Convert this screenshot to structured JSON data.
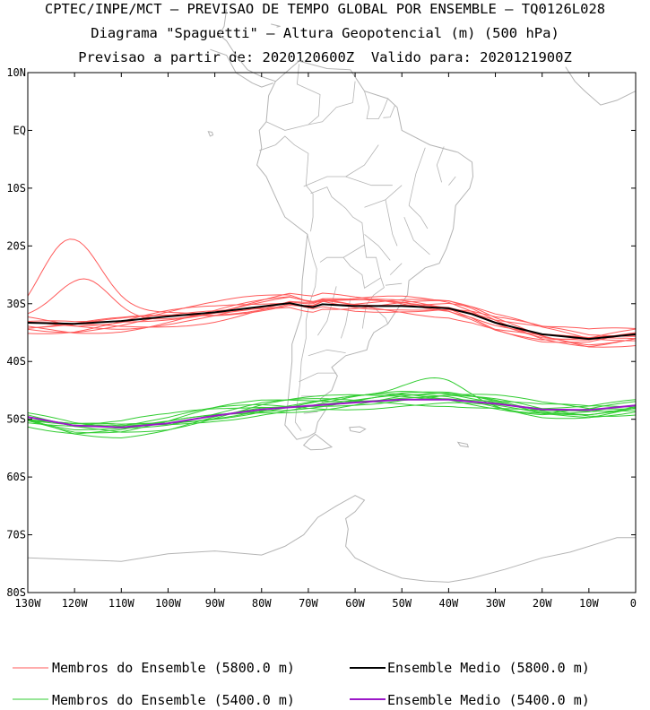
{
  "header": {
    "line1": "CPTEC/INPE/MCT – PREVISAO DE TEMPO GLOBAL POR ENSEMBLE – TQ0126L028",
    "line2": "Diagrama \"Spaguetti\" – Altura Geopotencial (m) (500 hPa)",
    "line3": "Previsao a partir de: 2020120600Z  Valido para: 2020121900Z"
  },
  "map": {
    "lon_range": [
      -130,
      0
    ],
    "lat_range": [
      -80,
      10
    ],
    "y_ticks": [
      {
        "lat": 10,
        "label": "10N"
      },
      {
        "lat": 0,
        "label": "EQ"
      },
      {
        "lat": -10,
        "label": "10S"
      },
      {
        "lat": -20,
        "label": "20S"
      },
      {
        "lat": -30,
        "label": "30S"
      },
      {
        "lat": -40,
        "label": "40S"
      },
      {
        "lat": -50,
        "label": "50S"
      },
      {
        "lat": -60,
        "label": "60S"
      },
      {
        "lat": -70,
        "label": "70S"
      },
      {
        "lat": -80,
        "label": "80S"
      }
    ],
    "x_ticks": [
      {
        "lon": -130,
        "label": "130W"
      },
      {
        "lon": -120,
        "label": "120W"
      },
      {
        "lon": -110,
        "label": "110W"
      },
      {
        "lon": -100,
        "label": "100W"
      },
      {
        "lon": -90,
        "label": "90W"
      },
      {
        "lon": -80,
        "label": "80W"
      },
      {
        "lon": -70,
        "label": "70W"
      },
      {
        "lon": -60,
        "label": "60W"
      },
      {
        "lon": -50,
        "label": "50W"
      },
      {
        "lon": -40,
        "label": "40W"
      },
      {
        "lon": -30,
        "label": "30W"
      },
      {
        "lon": -20,
        "label": "20W"
      },
      {
        "lon": -10,
        "label": "10W"
      },
      {
        "lon": 0,
        "label": "0"
      }
    ],
    "coast_color": "#b4b4b4",
    "mean_5800": [
      [
        -130,
        -33.3
      ],
      [
        -120,
        -33.5
      ],
      [
        -110,
        -33
      ],
      [
        -100,
        -32.2
      ],
      [
        -90,
        -31.5
      ],
      [
        -80,
        -30.5
      ],
      [
        -74,
        -29.9
      ],
      [
        -71,
        -30.4
      ],
      [
        -69,
        -30.6
      ],
      [
        -67,
        -30.1
      ],
      [
        -60,
        -30.4
      ],
      [
        -50,
        -30.4
      ],
      [
        -40,
        -30.8
      ],
      [
        -35,
        -31.8
      ],
      [
        -30,
        -33.3
      ],
      [
        -20,
        -35.3
      ],
      [
        -10,
        -36.1
      ],
      [
        0,
        -35.3
      ]
    ],
    "mean_5400": [
      [
        -130,
        -49.6
      ],
      [
        -120,
        -51.1
      ],
      [
        -110,
        -51.4
      ],
      [
        -100,
        -50.7
      ],
      [
        -90,
        -49.4
      ],
      [
        -80,
        -48.3
      ],
      [
        -70,
        -47.7
      ],
      [
        -60,
        -47.1
      ],
      [
        -50,
        -46.6
      ],
      [
        -40,
        -46.6
      ],
      [
        -30,
        -47.3
      ],
      [
        -20,
        -48.3
      ],
      [
        -10,
        -48.4
      ],
      [
        0,
        -47.6
      ]
    ]
  },
  "legend": {
    "items": [
      {
        "label": "Membros do Ensemble (5800.0 m)",
        "color": "#ff5a5a"
      },
      {
        "label": "Ensemble Medio (5800.0 m)",
        "color": "#000000"
      },
      {
        "label": "Membros do Ensemble (5400.0 m)",
        "color": "#32cd32"
      },
      {
        "label": "Ensemble Medio (5400.0 m)",
        "color": "#9b18c8"
      }
    ]
  }
}
